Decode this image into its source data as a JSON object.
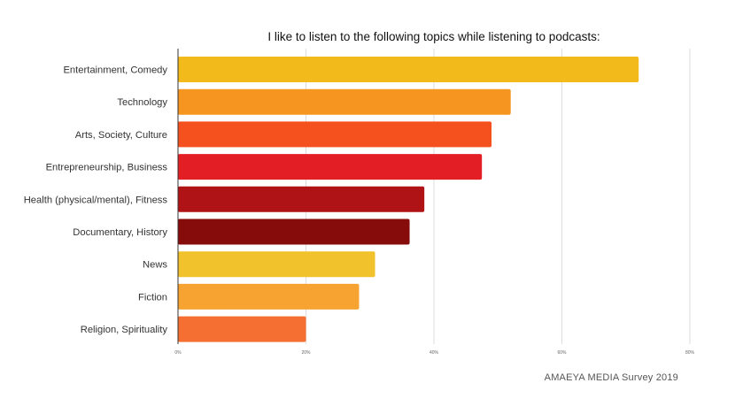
{
  "chart_data": {
    "type": "bar",
    "orientation": "horizontal",
    "title": "I like to listen to the following topics while listening to podcasts:",
    "categories": [
      "Entertainment, Comedy",
      "Technology",
      "Arts, Society, Culture",
      "Entrepreneurship, Business",
      "Health (physical/mental), Fitness",
      "Documentary, History",
      "News",
      "Fiction",
      "Religion, Spirituality"
    ],
    "values": [
      72,
      52,
      49,
      47.5,
      38.5,
      36.2,
      30.8,
      28.3,
      20
    ],
    "colors": [
      "#f2bb1b",
      "#f6951f",
      "#f4511f",
      "#e41e25",
      "#b01315",
      "#860b0b",
      "#f2c22c",
      "#f7a332",
      "#f46f31"
    ],
    "xlim": [
      0,
      80
    ],
    "xticks": [
      "0%",
      "20%",
      "40%",
      "60%",
      "80%"
    ],
    "grid": true,
    "legend": "none"
  },
  "source_note": "AMAEYA MEDIA Survey 2019"
}
